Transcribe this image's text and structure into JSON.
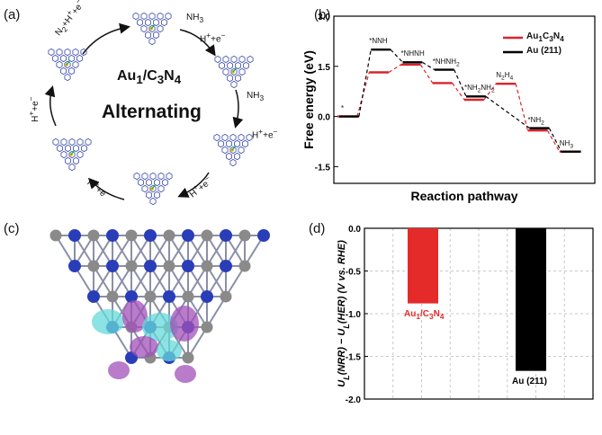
{
  "panels": {
    "a": {
      "label": "(a)",
      "catalyst_html": "Au<sub>1</sub>/C<sub>3</sub>N<sub>4</sub>",
      "mechanism": "Alternating",
      "steps_html": [
        "N<sub>2</sub>+H<sup>+</sup>+e<sup>−</sup>",
        "NH<sub>3</sub>",
        "H<sup>+</sup>+e<sup>−</sup>",
        "NH<sub>3</sub>",
        "H<sup>+</sup>+e<sup>−</sup>",
        "H<sup>+</sup>+e<sup>−</sup>",
        "H<sup>+</sup>+e<sup>−</sup>",
        "H<sup>+</sup>+e<sup>−</sup>"
      ]
    },
    "b": {
      "label": "(b)"
    },
    "c": {
      "label": "(c)"
    },
    "d": {
      "label": "(d)"
    }
  },
  "colors": {
    "red": "#d9252b",
    "black": "#000000",
    "grid": "#c8c8c8",
    "nitrogen": "#2a3db8",
    "carbon": "#8a8a8a",
    "cyan": "#66d9d9",
    "purple": "#a050b8"
  },
  "chart_data": [
    {
      "type": "line",
      "panel": "b",
      "xlabel": "Reaction pathway",
      "ylabel": "Free energy (eV)",
      "ylim": [
        -2.0,
        3.0
      ],
      "yticks": [
        "3.0",
        "1.5",
        "0.0",
        "-1.5"
      ],
      "ytick_values": [
        3.0,
        1.5,
        0.0,
        -1.5
      ],
      "legend_position": "top-right",
      "series": [
        {
          "name_html": "Au<sub>1</sub>C<sub>3</sub>N<sub>4</sub>",
          "color": "#d9252b",
          "levels": [
            0.0,
            1.32,
            1.55,
            1.0,
            0.5,
            0.98,
            -0.42,
            -1.05
          ]
        },
        {
          "name_html": "Au (211)",
          "color": "#000000",
          "levels": [
            0.0,
            2.0,
            1.62,
            1.4,
            0.6,
            null,
            -0.35,
            -1.05
          ]
        }
      ],
      "state_labels_html": [
        "*",
        "*NNH",
        "*NHNH",
        "*NHNH<sub>2</sub>",
        "*NH<sub>2</sub>NH<sub>2</sub>",
        "N<sub>2</sub>H<sub>4</sub>",
        "*NH<sub>2</sub>",
        "NH<sub>3</sub>"
      ]
    },
    {
      "type": "bar",
      "panel": "d",
      "categories_html": [
        "Au<sub>1</sub>/C<sub>3</sub>N<sub>4</sub>",
        "Au (211)"
      ],
      "values": [
        -0.88,
        -1.67
      ],
      "colors": [
        "#e52a2a",
        "#000000"
      ],
      "ylabel_html": "U<tspan baseline-shift=\"sub\" font-size=\"9\">L</tspan>(NRR) − U<tspan baseline-shift=\"sub\" font-size=\"9\">L</tspan>(HER) (V vs. RHE)",
      "ylim": [
        -2.0,
        0.0
      ],
      "yticks": [
        "0.0",
        "-0.5",
        "-1.0",
        "-1.5",
        "-2.0"
      ],
      "ytick_values": [
        0.0,
        -0.5,
        -1.0,
        -1.5,
        -2.0
      ],
      "grid": true
    }
  ]
}
